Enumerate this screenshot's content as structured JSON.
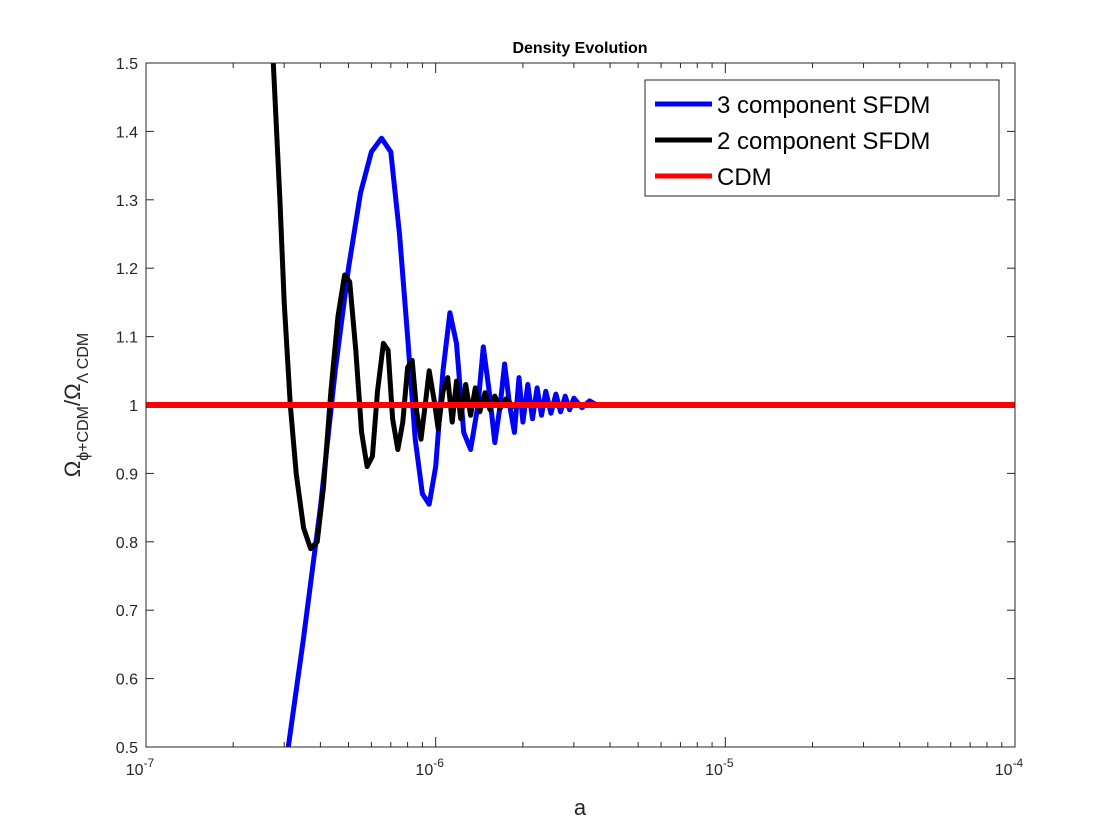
{
  "chart_data": {
    "type": "line",
    "title": "Density Evolution",
    "xlabel": "a",
    "ylabel": {
      "omega_1": "Ω",
      "sub_1": "ϕ+CDM",
      "slash": "/",
      "omega_2": "Ω",
      "sub_2": "Λ CDM"
    },
    "xscale": "log",
    "xlim": [
      1e-07,
      0.0001
    ],
    "ylim": [
      0.5,
      1.5
    ],
    "x_ticks": [
      {
        "base": "10",
        "exp": "-7"
      },
      {
        "base": "10",
        "exp": "-6"
      },
      {
        "base": "10",
        "exp": "-5"
      },
      {
        "base": "10",
        "exp": "-4"
      }
    ],
    "y_ticks": [
      "0.5",
      "0.6",
      "0.7",
      "0.8",
      "0.9",
      "1",
      "1.1",
      "1.2",
      "1.3",
      "1.4",
      "1.5"
    ],
    "legend_position": "top-right",
    "series": [
      {
        "name": "3 component SFDM",
        "color": "#0000ff",
        "points": [
          [
            3.1e-07,
            0.5
          ],
          [
            3.5e-07,
            0.66
          ],
          [
            4e-07,
            0.85
          ],
          [
            4.5e-07,
            1.05
          ],
          [
            5e-07,
            1.2
          ],
          [
            5.5e-07,
            1.31
          ],
          [
            6e-07,
            1.37
          ],
          [
            6.5e-07,
            1.39
          ],
          [
            7e-07,
            1.37
          ],
          [
            7.5e-07,
            1.25
          ],
          [
            8e-07,
            1.1
          ],
          [
            8.5e-07,
            0.95
          ],
          [
            9e-07,
            0.87
          ],
          [
            9.5e-07,
            0.855
          ],
          [
            1e-06,
            0.91
          ],
          [
            1.06e-06,
            1.05
          ],
          [
            1.12e-06,
            1.135
          ],
          [
            1.18e-06,
            1.09
          ],
          [
            1.25e-06,
            0.96
          ],
          [
            1.32e-06,
            0.935
          ],
          [
            1.4e-06,
            1.0
          ],
          [
            1.46e-06,
            1.085
          ],
          [
            1.53e-06,
            1.02
          ],
          [
            1.6e-06,
            0.945
          ],
          [
            1.67e-06,
            1.0
          ],
          [
            1.73e-06,
            1.06
          ],
          [
            1.8e-06,
            1.0
          ],
          [
            1.87e-06,
            0.96
          ],
          [
            1.94e-06,
            1.04
          ],
          [
            2e-06,
            0.975
          ],
          [
            2.08e-06,
            1.03
          ],
          [
            2.16e-06,
            0.98
          ],
          [
            2.24e-06,
            1.025
          ],
          [
            2.32e-06,
            0.985
          ],
          [
            2.4e-06,
            1.02
          ],
          [
            2.5e-06,
            0.988
          ],
          [
            2.6e-06,
            1.016
          ],
          [
            2.7e-06,
            0.99
          ],
          [
            2.8e-06,
            1.013
          ],
          [
            2.9e-06,
            0.993
          ],
          [
            3e-06,
            1.01
          ],
          [
            3.2e-06,
            0.996
          ],
          [
            3.4e-06,
            1.006
          ],
          [
            3.6e-06,
            1.0
          ],
          [
            0.0001,
            1.0
          ]
        ]
      },
      {
        "name": "2 component SFDM",
        "color": "#000000",
        "points": [
          [
            2.75e-07,
            1.5
          ],
          [
            2.9e-07,
            1.3
          ],
          [
            3e-07,
            1.15
          ],
          [
            3.15e-07,
            1.0
          ],
          [
            3.3e-07,
            0.9
          ],
          [
            3.5e-07,
            0.82
          ],
          [
            3.7e-07,
            0.79
          ],
          [
            3.9e-07,
            0.8
          ],
          [
            4.1e-07,
            0.88
          ],
          [
            4.35e-07,
            1.02
          ],
          [
            4.6e-07,
            1.13
          ],
          [
            4.85e-07,
            1.19
          ],
          [
            5.05e-07,
            1.18
          ],
          [
            5.3e-07,
            1.08
          ],
          [
            5.55e-07,
            0.96
          ],
          [
            5.8e-07,
            0.91
          ],
          [
            6.05e-07,
            0.925
          ],
          [
            6.3e-07,
            1.02
          ],
          [
            6.6e-07,
            1.09
          ],
          [
            6.85e-07,
            1.08
          ],
          [
            7.1e-07,
            0.98
          ],
          [
            7.4e-07,
            0.935
          ],
          [
            7.7e-07,
            0.975
          ],
          [
            8e-07,
            1.055
          ],
          [
            8.3e-07,
            1.065
          ],
          [
            8.6e-07,
            0.99
          ],
          [
            8.9e-07,
            0.95
          ],
          [
            9.2e-07,
            1.0
          ],
          [
            9.5e-07,
            1.05
          ],
          [
            9.85e-07,
            1.01
          ],
          [
            1.02e-06,
            0.965
          ],
          [
            1.06e-06,
            1.02
          ],
          [
            1.1e-06,
            1.04
          ],
          [
            1.14e-06,
            0.975
          ],
          [
            1.18e-06,
            1.035
          ],
          [
            1.22e-06,
            0.98
          ],
          [
            1.27e-06,
            1.03
          ],
          [
            1.32e-06,
            0.985
          ],
          [
            1.37e-06,
            1.025
          ],
          [
            1.42e-06,
            0.99
          ],
          [
            1.48e-06,
            1.018
          ],
          [
            1.54e-06,
            0.993
          ],
          [
            1.6e-06,
            1.013
          ],
          [
            1.67e-06,
            0.995
          ],
          [
            1.75e-06,
            1.009
          ],
          [
            1.85e-06,
            0.998
          ],
          [
            1.95e-06,
            1.002
          ],
          [
            2.05e-06,
            1.0
          ],
          [
            0.0001,
            1.0
          ]
        ]
      },
      {
        "name": "CDM",
        "color": "#ff0000",
        "points": [
          [
            1e-07,
            1.0
          ],
          [
            0.0001,
            1.0
          ]
        ]
      }
    ]
  }
}
